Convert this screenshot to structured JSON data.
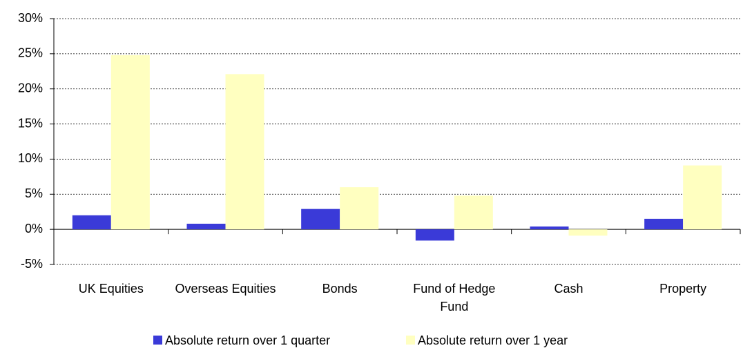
{
  "chart_data": {
    "type": "bar",
    "categories": [
      "UK Equities",
      "Overseas Equities",
      "Bonds",
      "Fund of Hedge Fund",
      "Cash",
      "Property"
    ],
    "series": [
      {
        "name": "Absolute return over 1 quarter",
        "color": "#3a3ad8",
        "values": [
          2.0,
          0.8,
          2.9,
          -1.6,
          0.4,
          1.5
        ]
      },
      {
        "name": "Absolute return over 1 year",
        "color": "#ffffc0",
        "values": [
          24.8,
          22.1,
          6.0,
          4.8,
          -0.9,
          9.1
        ]
      }
    ],
    "ylim": [
      -5,
      30
    ],
    "yticks": [
      {
        "value": -5,
        "label": "-5%"
      },
      {
        "value": 0,
        "label": "0%"
      },
      {
        "value": 5,
        "label": "5%"
      },
      {
        "value": 10,
        "label": "10%"
      },
      {
        "value": 15,
        "label": "15%"
      },
      {
        "value": 20,
        "label": "20%"
      },
      {
        "value": 25,
        "label": "25%"
      },
      {
        "value": 30,
        "label": "30%"
      }
    ],
    "grid": true,
    "legend": "bottom"
  }
}
